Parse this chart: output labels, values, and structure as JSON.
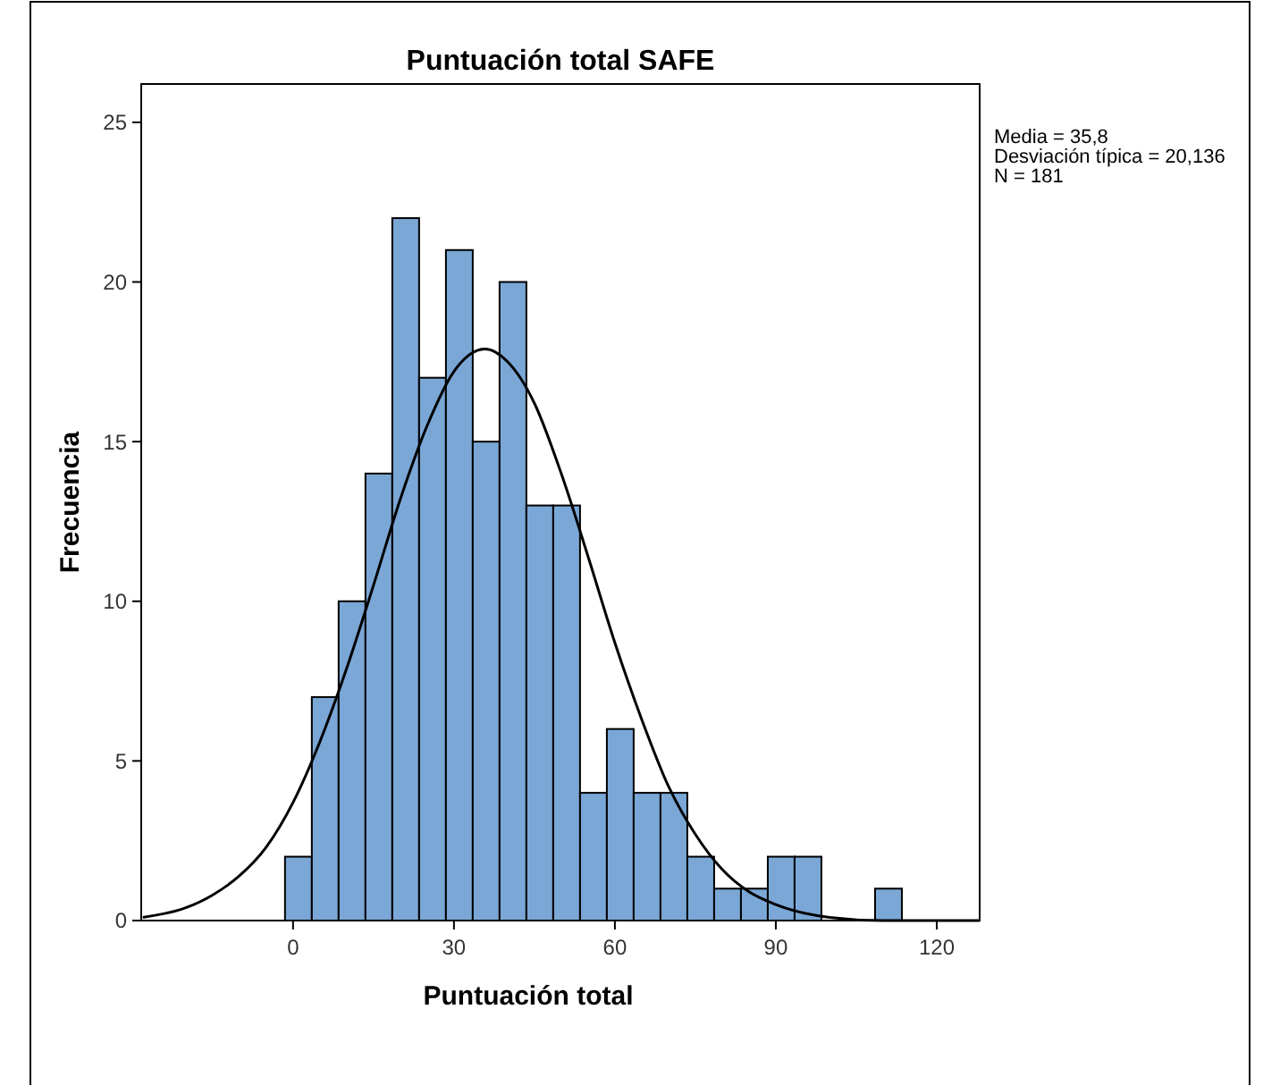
{
  "chart_data": {
    "type": "histogram",
    "title": "Puntuación total SAFE",
    "xlabel": "Puntuación total",
    "ylabel": "Frecuencia",
    "bins": [
      -1.5,
      3.5,
      8.5,
      13.5,
      18.5,
      23.5,
      28.5,
      33.5,
      38.5,
      43.5,
      48.5,
      53.5,
      58.5,
      63.5,
      68.5,
      73.5,
      78.5,
      83.5,
      88.5,
      93.5,
      98.5,
      103.5,
      108.5,
      113.5
    ],
    "series": [
      {
        "color": "#7ba7d6",
        "values": [
          2,
          7,
          10,
          14,
          22,
          17,
          21,
          15,
          20,
          13,
          13,
          4,
          6,
          4,
          4,
          2,
          1,
          1,
          2,
          2,
          0,
          0,
          1
        ]
      },
      {
        "type": "line",
        "color": "#000000",
        "x": [
          -28,
          -20,
          -15,
          -10,
          -5,
          0,
          5,
          10,
          15,
          20,
          25,
          30,
          35.8,
          40,
          45,
          50,
          55,
          60,
          65,
          70,
          75,
          80,
          85,
          90,
          100,
          110,
          120,
          128
        ],
        "values": [
          0.1,
          0.4,
          0.8,
          1.4,
          2.3,
          3.7,
          5.6,
          7.9,
          10.5,
          13.2,
          15.5,
          17.2,
          17.9,
          17.5,
          16.2,
          14.0,
          11.4,
          8.7,
          6.3,
          4.2,
          2.7,
          1.6,
          0.9,
          0.5,
          0.1,
          0,
          0,
          0
        ]
      }
    ],
    "xlim": [
      -28.3,
      128
    ],
    "xticks": [
      0,
      30,
      60,
      90,
      120
    ],
    "ylim": [
      0,
      26.2
    ],
    "yticks": [
      0,
      5,
      10,
      15,
      20,
      25
    ],
    "grid": false,
    "marker": "none",
    "line_style": "solid",
    "annotations": [
      "Media = 35,8",
      "Desviación típica = 20,136",
      "N = 181"
    ]
  }
}
